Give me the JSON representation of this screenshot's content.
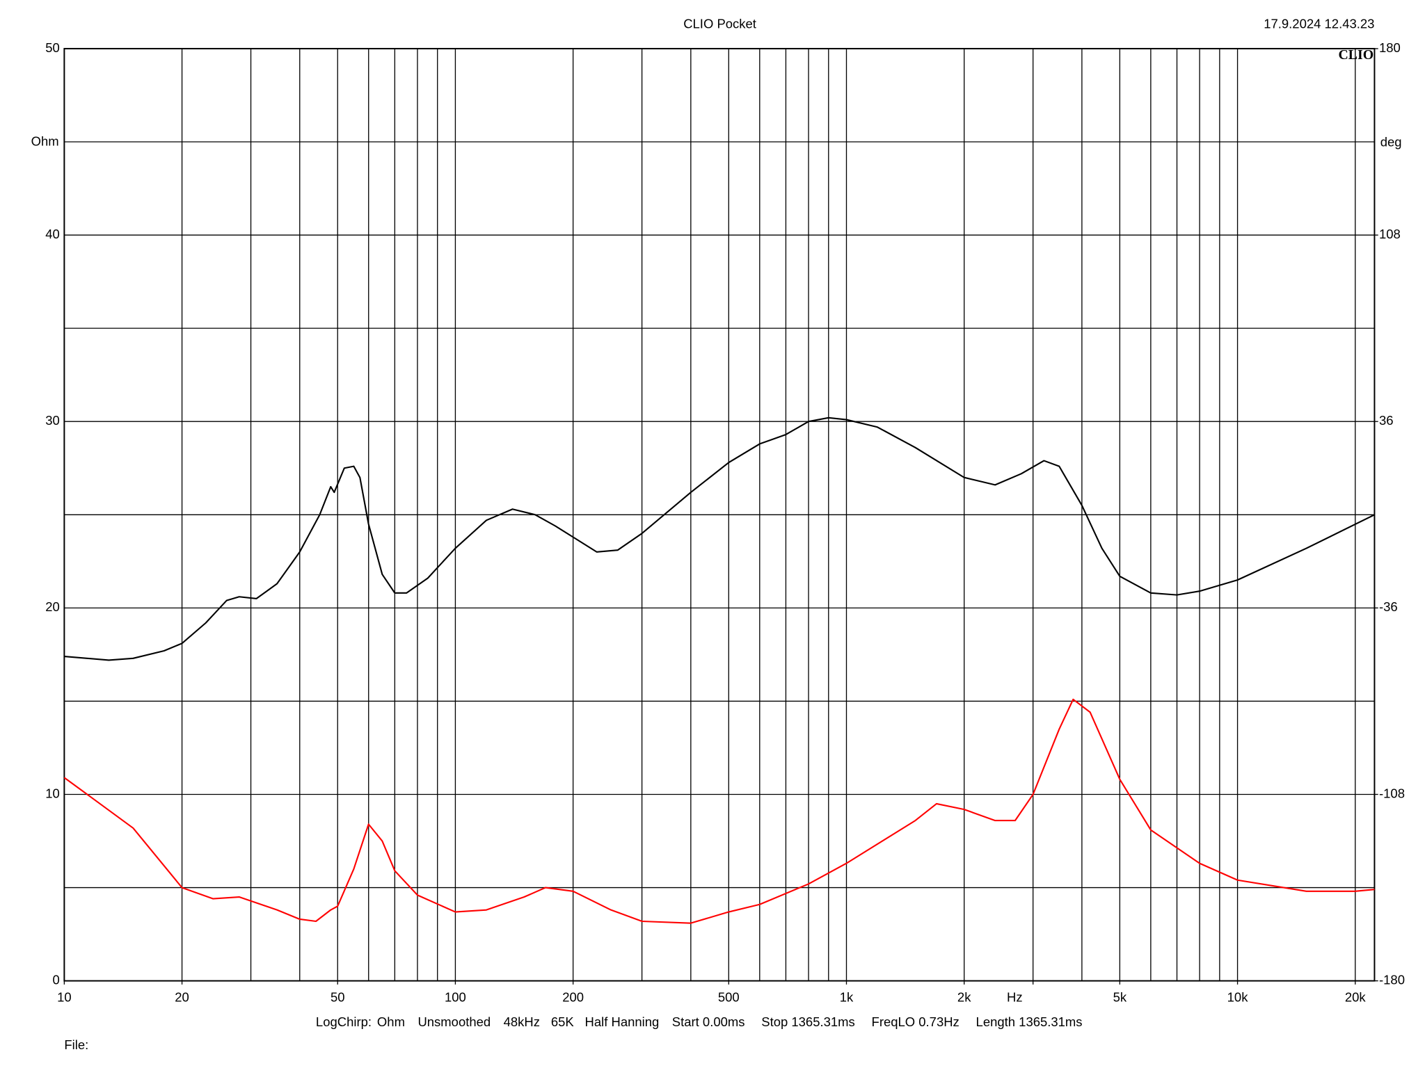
{
  "chart_data": {
    "type": "line",
    "title": "CLIO Pocket",
    "timestamp": "17.9.2024 12.43.23",
    "logo": "CLIO",
    "ylabel": "Ohm",
    "y2label": "deg",
    "xlog": true,
    "grid": true,
    "xlim": [
      10,
      22400
    ],
    "ylim": [
      0,
      50
    ],
    "y2lim": [
      -180,
      180
    ],
    "xticks": [
      10,
      20,
      50,
      100,
      200,
      500,
      {
        "value": 1000,
        "label": "1k"
      },
      {
        "value": 2000,
        "label": "2k"
      },
      {
        "value": 3000,
        "label": "Hz"
      },
      {
        "value": 5000,
        "label": "5k"
      },
      {
        "value": 10000,
        "label": "10k"
      },
      {
        "value": 20000,
        "label": "20k"
      }
    ],
    "xgrid": [
      20,
      30,
      40,
      50,
      60,
      70,
      80,
      90,
      100,
      200,
      300,
      400,
      500,
      600,
      700,
      800,
      900,
      1000,
      2000,
      3000,
      4000,
      5000,
      6000,
      7000,
      8000,
      9000,
      10000,
      20000
    ],
    "yticks": [
      0,
      10,
      20,
      30,
      40,
      50
    ],
    "ygrid": [
      5,
      15,
      25,
      35,
      45
    ],
    "y2ticks": [
      -180,
      -108,
      -36,
      36,
      108,
      180
    ],
    "series": [
      {
        "name": "Ohm",
        "color": "#000000",
        "axis": "y",
        "x": [
          10,
          13,
          15,
          18,
          20,
          23,
          26,
          28,
          31,
          35,
          40,
          45,
          48,
          49,
          52,
          55,
          57,
          60,
          65,
          70,
          75,
          85,
          100,
          120,
          140,
          160,
          180,
          200,
          230,
          260,
          300,
          400,
          500,
          600,
          700,
          800,
          900,
          1000,
          1200,
          1500,
          2000,
          2400,
          2800,
          3200,
          3500,
          4000,
          4500,
          5000,
          6000,
          7000,
          8000,
          10000,
          15000,
          22400
        ],
        "values": [
          17.4,
          17.2,
          17.3,
          17.7,
          18.1,
          19.2,
          20.4,
          20.6,
          20.5,
          21.3,
          23.0,
          25.0,
          26.5,
          26.2,
          27.5,
          27.6,
          27.0,
          24.5,
          21.8,
          20.8,
          20.8,
          21.6,
          23.2,
          24.7,
          25.3,
          25.0,
          24.4,
          23.8,
          23.0,
          23.1,
          24.0,
          26.2,
          27.8,
          28.8,
          29.3,
          30.0,
          30.2,
          30.1,
          29.7,
          28.6,
          27.0,
          26.6,
          27.2,
          27.9,
          27.6,
          25.5,
          23.2,
          21.7,
          20.8,
          20.7,
          20.9,
          21.5,
          23.2,
          25.0
        ]
      },
      {
        "name": "deg",
        "color": "#ff0000",
        "axis": "y2",
        "x": [
          10,
          15,
          20,
          24,
          28,
          35,
          40,
          44,
          48,
          50,
          55,
          60,
          65,
          70,
          80,
          100,
          120,
          150,
          170,
          200,
          250,
          300,
          400,
          500,
          600,
          800,
          1000,
          1500,
          1700,
          2000,
          2400,
          2700,
          3000,
          3500,
          3800,
          4200,
          5000,
          6000,
          8000,
          10000,
          15000,
          20000,
          22400
        ],
        "values": [
          -101.5,
          -121,
          -144,
          -148.3,
          -147.6,
          -152.6,
          -156.2,
          -157,
          -152.6,
          -151.2,
          -136.8,
          -119.5,
          -126,
          -137.5,
          -146.9,
          -153.4,
          -152.6,
          -147.6,
          -144,
          -145.4,
          -152.6,
          -157,
          -157.7,
          -153.4,
          -150.5,
          -142.6,
          -134.6,
          -118.1,
          -111.6,
          -113.8,
          -118.1,
          -118.1,
          -108,
          -82.8,
          -71.3,
          -76.3,
          -102.2,
          -121.7,
          -134.6,
          -141.1,
          -145.4,
          -145.4,
          -144.7
        ]
      }
    ],
    "footer": [
      "LogChirp:",
      "Ohm",
      "Unsmoothed",
      "48kHz",
      "65K",
      "Half Hanning",
      "Start 0.00ms",
      "Stop 1365.31ms",
      "FreqLO 0.73Hz",
      "Length 1365.31ms"
    ],
    "file_label": "File:"
  }
}
